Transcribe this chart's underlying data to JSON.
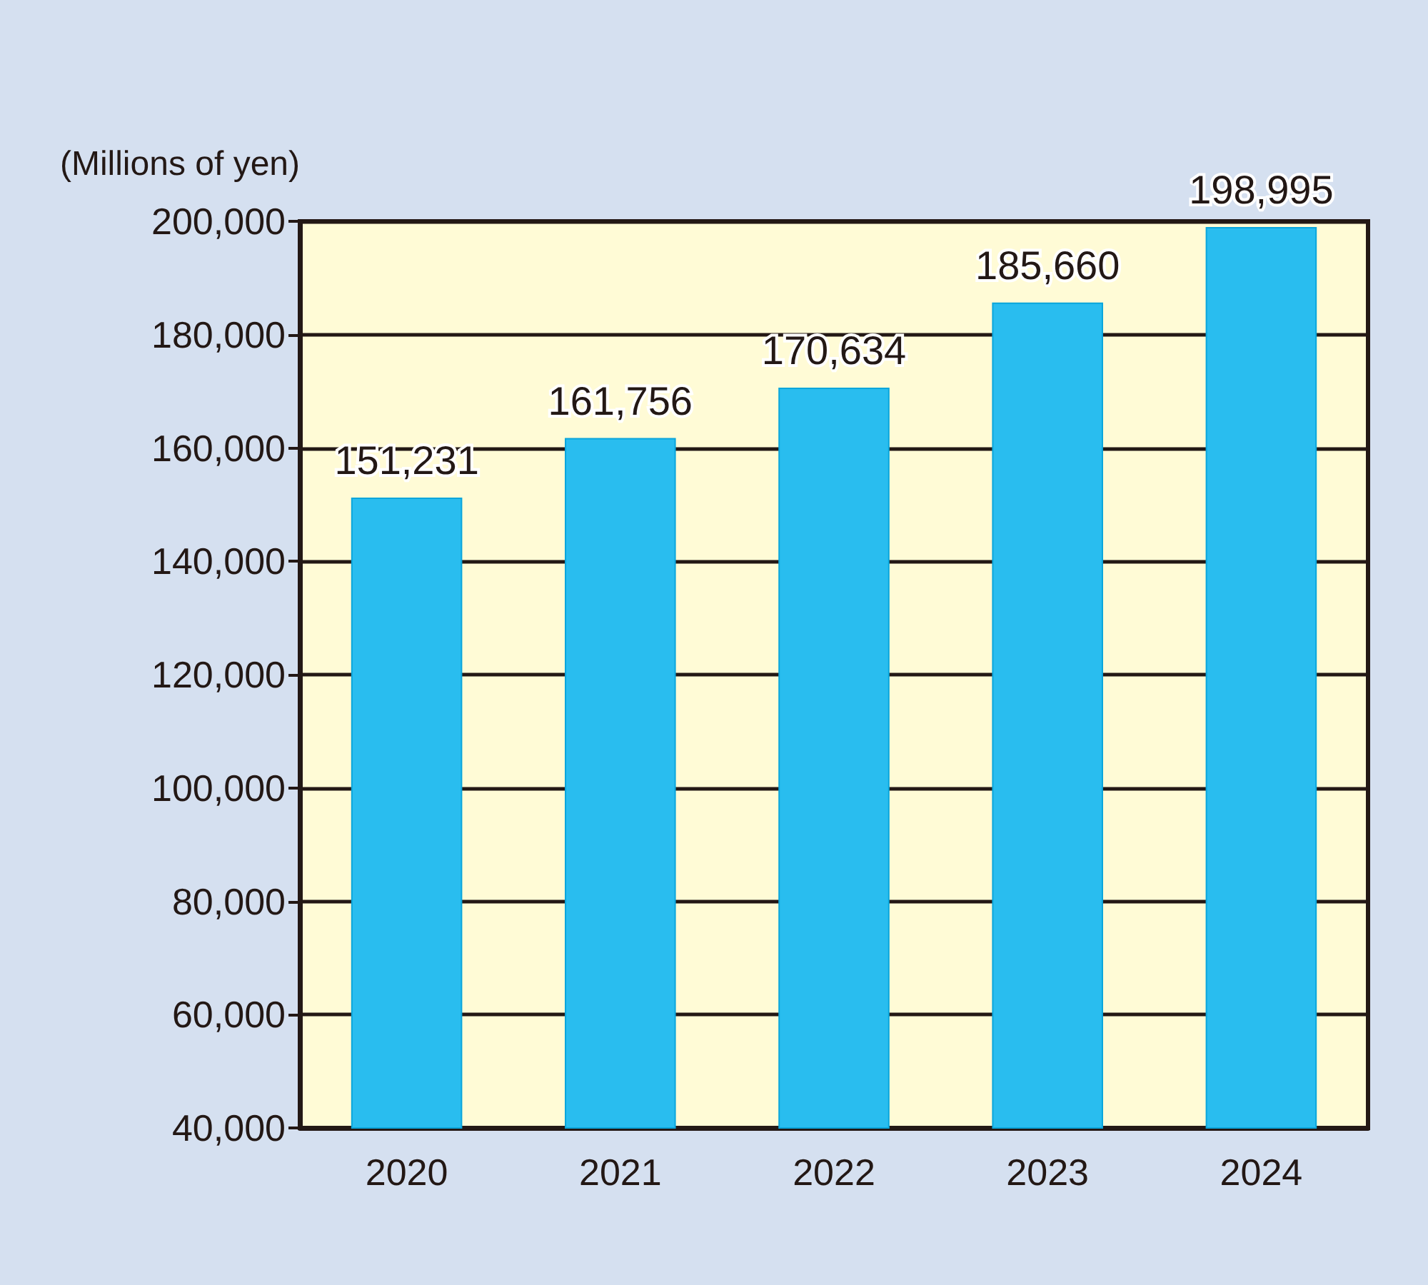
{
  "chart_data": {
    "type": "bar",
    "ylabel": "(Millions of yen)",
    "categories": [
      "2020",
      "2021",
      "2022",
      "2023",
      "2024"
    ],
    "values": [
      151231,
      161756,
      170634,
      185660,
      198995
    ],
    "color": "#29bdef",
    "value_labels": [
      "151,231",
      "161,756",
      "170,634",
      "185,660",
      "198,995"
    ],
    "ylim": [
      40000,
      200000
    ],
    "yticks": [
      {
        "value": 40000,
        "label": "40,000"
      },
      {
        "value": 60000,
        "label": "60,000"
      },
      {
        "value": 80000,
        "label": "80,000"
      },
      {
        "value": 100000,
        "label": "100,000"
      },
      {
        "value": 120000,
        "label": "120,000"
      },
      {
        "value": 140000,
        "label": "140,000"
      },
      {
        "value": 160000,
        "label": "160,000"
      },
      {
        "value": 180000,
        "label": "180,000"
      },
      {
        "value": 200000,
        "label": "200,000"
      }
    ],
    "grid": "y"
  }
}
